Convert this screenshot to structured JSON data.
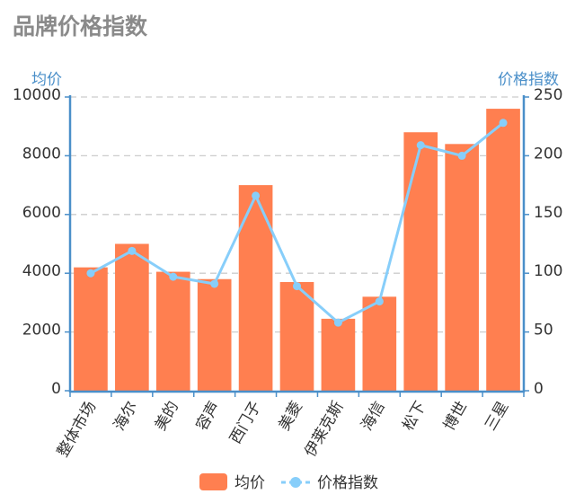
{
  "chart_data": {
    "type": "bar",
    "title": "品牌价格指数",
    "categories": [
      "整体市场",
      "海尔",
      "美的",
      "容声",
      "西门子",
      "美菱",
      "伊莱克斯",
      "海信",
      "松下",
      "博世",
      "三星"
    ],
    "series": [
      {
        "name": "均价",
        "type": "bar",
        "axis": "left",
        "values": [
          4200,
          5000,
          4050,
          3800,
          7000,
          3700,
          2450,
          3200,
          8800,
          8400,
          9600
        ]
      },
      {
        "name": "价格指数",
        "type": "line",
        "axis": "right",
        "values": [
          100,
          119,
          97,
          91,
          166,
          89,
          58,
          76,
          209,
          200,
          228
        ]
      }
    ],
    "y_left": {
      "label": "均价",
      "min": 0,
      "max": 10000,
      "ticks": [
        0,
        2000,
        4000,
        6000,
        8000,
        10000
      ]
    },
    "y_right": {
      "label": "价格指数",
      "min": 0,
      "max": 250,
      "ticks": [
        0,
        50,
        100,
        150,
        200,
        250
      ]
    },
    "grid": true,
    "legend": "bottom-center",
    "colors": {
      "bar": "#ff7f50",
      "line": "#87cefa",
      "axis": "#4a8fc9",
      "title": "#8a8a8a",
      "grid": "#cccccc"
    }
  }
}
